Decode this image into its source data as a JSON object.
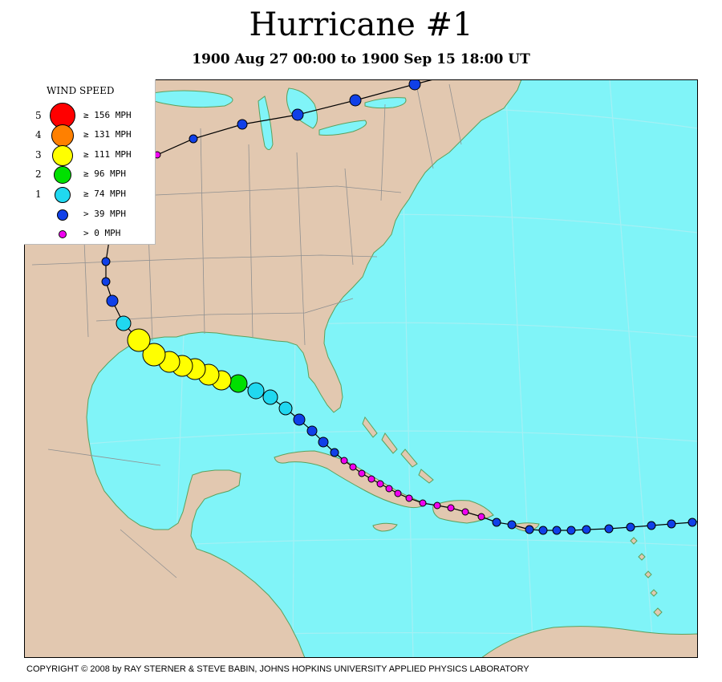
{
  "title": "Hurricane #1",
  "subtitle": "1900 Aug 27 00:00 to 1900 Sep 15 18:00 UT",
  "legend": {
    "title": "WIND SPEED",
    "rows": [
      {
        "cat": "5",
        "label": "≥ 156 MPH",
        "color": "#ff0000"
      },
      {
        "cat": "4",
        "label": "≥ 131 MPH",
        "color": "#ff8000"
      },
      {
        "cat": "3",
        "label": "≥ 111 MPH",
        "color": "#ffff00"
      },
      {
        "cat": "2",
        "label": "≥ 96 MPH",
        "color": "#00e000"
      },
      {
        "cat": "1",
        "label": "≥ 74 MPH",
        "color": "#20d8f0"
      },
      {
        "cat": "",
        "label": "> 39 MPH",
        "color": "#1040e8"
      },
      {
        "cat": "",
        "label": "> 0 MPH",
        "color": "#f000f0"
      }
    ]
  },
  "colors": {
    "ocean": "#80f4f8",
    "land": "#e2c8b0",
    "coastline": "#5ca05c",
    "borders": "#909090",
    "track": "#000000"
  },
  "copyright": "COPYRIGHT © 2008 by RAY STERNER & STEVE BABIN, JOHNS HOPKINS UNIVERSITY APPLIED PHYSICS LABORATORY"
}
